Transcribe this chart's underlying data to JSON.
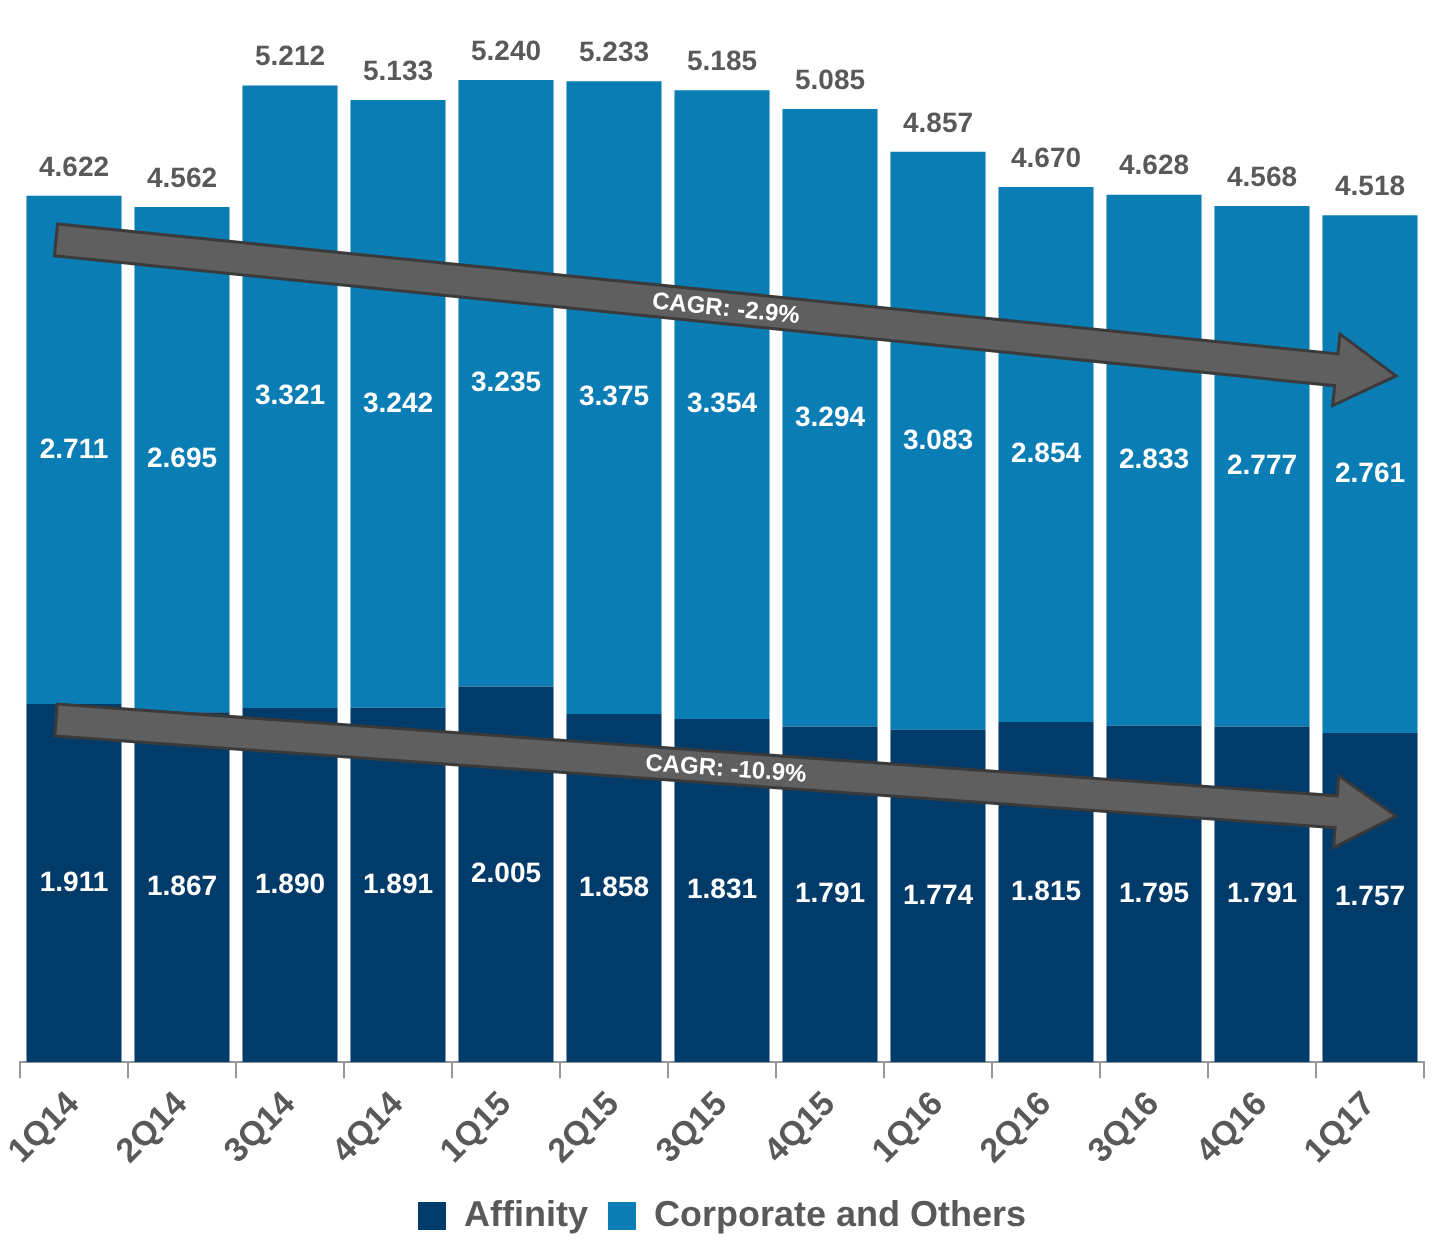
{
  "chart_data": {
    "type": "bar",
    "stacked": true,
    "categories": [
      "1Q14",
      "2Q14",
      "3Q14",
      "4Q14",
      "1Q15",
      "2Q15",
      "3Q15",
      "4Q15",
      "1Q16",
      "2Q16",
      "3Q16",
      "4Q16",
      "1Q17"
    ],
    "series": [
      {
        "name": "Affinity",
        "color": "#003b6a",
        "values": [
          1.911,
          1.867,
          1.89,
          1.891,
          2.005,
          1.858,
          1.831,
          1.791,
          1.774,
          1.815,
          1.795,
          1.791,
          1.757
        ],
        "value_labels": [
          "1.911",
          "1.867",
          "1.890",
          "1.891",
          "2.005",
          "1.858",
          "1.831",
          "1.791",
          "1.774",
          "1.815",
          "1.795",
          "1.791",
          "1.757"
        ]
      },
      {
        "name": "Corporate and Others",
        "color": "#0a7db5",
        "values": [
          2.711,
          2.695,
          3.321,
          3.242,
          3.235,
          3.375,
          3.354,
          3.294,
          3.083,
          2.854,
          2.833,
          2.777,
          2.761
        ],
        "value_labels": [
          "2.711",
          "2.695",
          "3.321",
          "3.242",
          "3.235",
          "3.375",
          "3.354",
          "3.294",
          "3.083",
          "2.854",
          "2.833",
          "2.777",
          "2.761"
        ]
      }
    ],
    "totals": [
      "4.622",
      "4.562",
      "5.212",
      "5.133",
      "5.240",
      "5.233",
      "5.185",
      "5.085",
      "4.857",
      "4.670",
      "4.628",
      "4.568",
      "4.518"
    ],
    "tick_labels": "x",
    "grid": false,
    "legend": "bottom",
    "annotations": [
      "CAGR: -2.9%",
      "CAGR: -10.9%"
    ]
  }
}
